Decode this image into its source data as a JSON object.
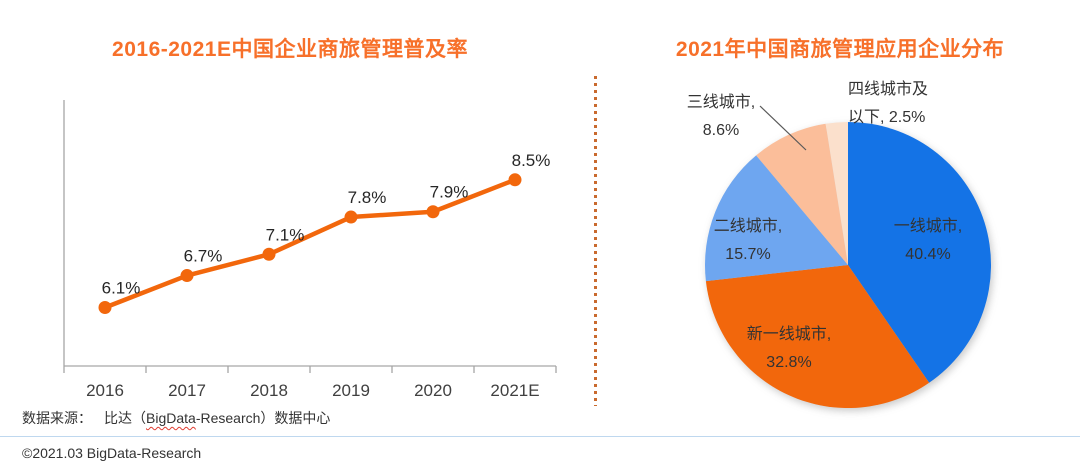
{
  "page": {
    "source_prefix": "数据来源：",
    "source_part1": "比达（",
    "source_word": "BigData",
    "source_part2": "-Research）数据中心",
    "copyright": "©2021.03 BigData-Research"
  },
  "chart_data": [
    {
      "type": "line",
      "title": "2016-2021E中国企业商旅管理普及率",
      "categories": [
        "2016",
        "2017",
        "2018",
        "2019",
        "2020",
        "2021E"
      ],
      "values": [
        6.1,
        6.7,
        7.1,
        7.8,
        7.9,
        8.5
      ],
      "labels": [
        "6.1%",
        "6.7%",
        "7.1%",
        "7.8%",
        "7.9%",
        "8.5%"
      ],
      "ylim": [
        5,
        10
      ],
      "grid": false,
      "legend": "none",
      "line_color": "#F2670C",
      "marker_color": "#F2670C",
      "axis_color": "#A6A6A6",
      "label_color": "#262626"
    },
    {
      "type": "pie",
      "title": "2021年中国商旅管理应用企业分布",
      "start_angle_deg": 0,
      "direction": "clockwise",
      "slices": [
        {
          "name": "一线城市",
          "value": 40.4,
          "label_line1": "一线城市,",
          "label_line2": "40.4%",
          "color": "#1473E6"
        },
        {
          "name": "新一线城市",
          "value": 32.8,
          "label_line1": "新一线城市,",
          "label_line2": "32.8%",
          "color": "#F2670C"
        },
        {
          "name": "二线城市",
          "value": 15.7,
          "label_line1": "二线城市,",
          "label_line2": "15.7%",
          "color": "#6EA6F0"
        },
        {
          "name": "三线城市",
          "value": 8.6,
          "label_line1": "三线城市,",
          "label_line2": "8.6%",
          "color": "#FBBE9A"
        },
        {
          "name": "四线城市及以下",
          "value": 2.5,
          "label_line1": "四线城市及",
          "label_line2": "以下, 2.5%",
          "color": "#FBE0CC"
        }
      ]
    }
  ]
}
